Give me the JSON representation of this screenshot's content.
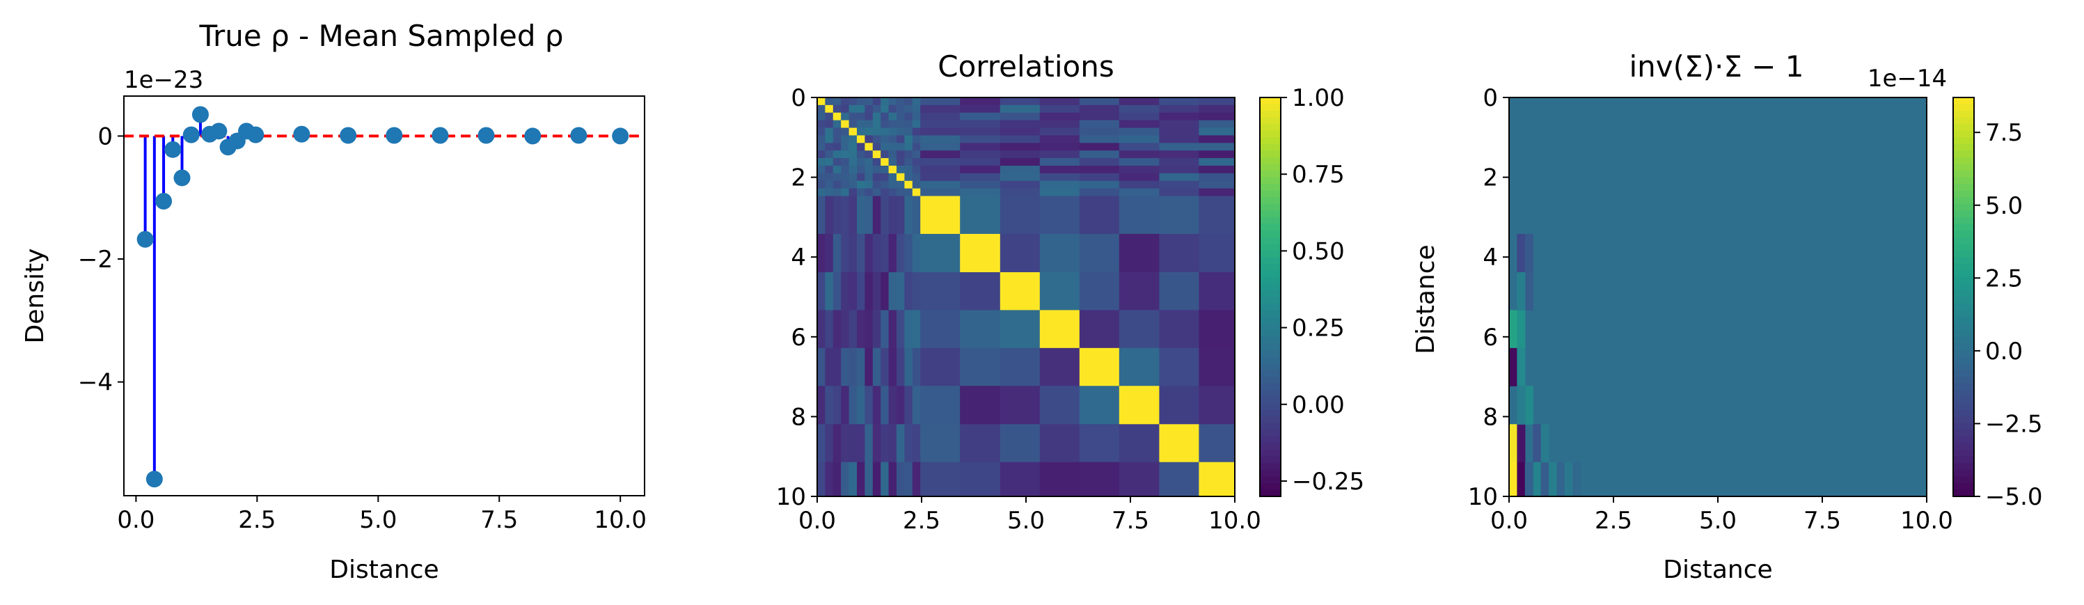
{
  "chart_data": [
    {
      "type": "scatter",
      "subtype": "stem",
      "title": "True ρ - Mean Sampled ρ",
      "xlabel": "Distance",
      "ylabel": "Density",
      "offset_text": "1e−23",
      "xlim": [
        -0.25,
        10.5
      ],
      "ylim": [
        -5.85,
        0.65
      ],
      "xticks": [
        0.0,
        2.5,
        5.0,
        7.5,
        10.0
      ],
      "xtick_labels": [
        "0.0",
        "2.5",
        "5.0",
        "7.5",
        "10.0"
      ],
      "yticks": [
        0,
        -2,
        -4
      ],
      "ytick_labels": [
        "0",
        "−2",
        "−4"
      ],
      "reference_line": {
        "y": 0,
        "style": "dashed",
        "color": "#ff0000"
      },
      "points": {
        "x": [
          0.19,
          0.38,
          0.57,
          0.76,
          0.95,
          1.14,
          1.33,
          1.52,
          1.71,
          1.9,
          2.09,
          2.28,
          2.47,
          3.42,
          4.38,
          5.33,
          6.28,
          7.23,
          8.19,
          9.14,
          10.0
        ],
        "y": [
          -1.68,
          -5.58,
          -1.06,
          -0.22,
          -0.68,
          0.02,
          0.35,
          0.03,
          0.08,
          -0.18,
          -0.08,
          0.08,
          0.02,
          0.03,
          0.01,
          0.01,
          0.01,
          0.01,
          0.0,
          0.01,
          0.0
        ]
      },
      "marker_color": "#1f77b4",
      "stem_color": "#0000ff"
    },
    {
      "type": "heatmap",
      "title": "Correlations",
      "xlabel": "",
      "ylabel": "",
      "extent": [
        0,
        10,
        10,
        0
      ],
      "xticks": [
        0.0,
        2.5,
        5.0,
        7.5,
        10.0
      ],
      "xtick_labels": [
        "0.0",
        "2.5",
        "5.0",
        "7.5",
        "10.0"
      ],
      "yticks": [
        0,
        2,
        4,
        6,
        8,
        10
      ],
      "ytick_labels": [
        "0",
        "2",
        "4",
        "6",
        "8",
        "10"
      ],
      "colorbar": {
        "vmin": -0.3,
        "vmax": 1.0,
        "ticks": [
          1.0,
          0.75,
          0.5,
          0.25,
          0.0,
          -0.25
        ],
        "tick_labels": [
          "1.00",
          "0.75",
          "0.50",
          "0.25",
          "0.00",
          "−0.25"
        ]
      },
      "colormap": "viridis",
      "grid_edges": [
        0,
        0.19,
        0.38,
        0.57,
        0.76,
        0.95,
        1.14,
        1.33,
        1.52,
        1.71,
        1.9,
        2.09,
        2.28,
        2.47,
        3.42,
        4.38,
        5.33,
        6.28,
        7.23,
        8.19,
        9.14,
        10.0
      ],
      "note": "diagonal = 1.00; off-diagonal cells mostly between -0.25 and 0.25"
    },
    {
      "type": "heatmap",
      "title": "inv(Σ)·Σ − 1",
      "xlabel": "Distance",
      "ylabel": "Distance",
      "extent": [
        0,
        10,
        10,
        0
      ],
      "xticks": [
        0.0,
        2.5,
        5.0,
        7.5,
        10.0
      ],
      "xtick_labels": [
        "0.0",
        "2.5",
        "5.0",
        "7.5",
        "10.0"
      ],
      "yticks": [
        0,
        2,
        4,
        6,
        8,
        10
      ],
      "ytick_labels": [
        "0",
        "2",
        "4",
        "6",
        "8",
        "10"
      ],
      "colorbar": {
        "vmin": -5.0,
        "vmax": 8.7,
        "offset_text": "1e−14",
        "ticks": [
          7.5,
          5.0,
          2.5,
          0.0,
          -2.5,
          -5.0
        ],
        "tick_labels": [
          "7.5",
          "5.0",
          "2.5",
          "0.0",
          "−2.5",
          "−5.0"
        ]
      },
      "colormap": "viridis",
      "background_value": 0.0,
      "cells": [
        {
          "col": 0,
          "row": 19,
          "value": 8.5
        },
        {
          "col": 0,
          "row": 20,
          "value": 8.7
        },
        {
          "col": 1,
          "row": 19,
          "value": -4.2
        },
        {
          "col": 1,
          "row": 20,
          "value": -4.8
        },
        {
          "col": 0,
          "row": 16,
          "value": 3.0
        },
        {
          "col": 1,
          "row": 16,
          "value": 2.0
        },
        {
          "col": 0,
          "row": 17,
          "value": -4.6
        },
        {
          "col": 1,
          "row": 17,
          "value": 1.5
        },
        {
          "col": 2,
          "row": 18,
          "value": 1.6
        },
        {
          "col": 1,
          "row": 18,
          "value": 0.8
        },
        {
          "col": 1,
          "row": 14,
          "value": -2.0
        },
        {
          "col": 2,
          "row": 14,
          "value": -1.2
        },
        {
          "col": 2,
          "row": 15,
          "value": -1.0
        },
        {
          "col": 3,
          "row": 19,
          "value": -1.4
        },
        {
          "col": 3,
          "row": 20,
          "value": 1.2
        },
        {
          "col": 4,
          "row": 20,
          "value": -1.0
        },
        {
          "col": 5,
          "row": 20,
          "value": 0.9
        },
        {
          "col": 4,
          "row": 19,
          "value": 0.7
        },
        {
          "col": 6,
          "row": 20,
          "value": -0.6
        },
        {
          "col": 7,
          "row": 20,
          "value": 0.5
        },
        {
          "col": 8,
          "row": 20,
          "value": -0.4
        },
        {
          "col": 2,
          "row": 20,
          "value": -0.8
        },
        {
          "col": 1,
          "row": 15,
          "value": 0.9
        }
      ]
    }
  ]
}
